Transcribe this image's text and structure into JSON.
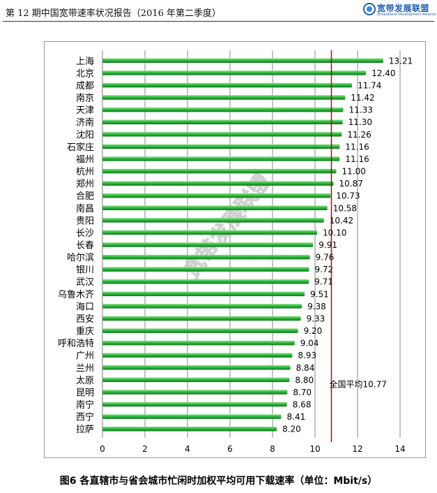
{
  "header": {
    "title": "第 12 期中国宽带速率状况报告（2016 年第二季度）",
    "logo_text": "宽带发展联盟",
    "logo_subtext": "Broadband Development Alliance"
  },
  "caption": "图6 各直辖市与省会城市忙闲时加权平均可用下载速率（单位：Mbit/s）",
  "chart_data": {
    "type": "bar",
    "orientation": "horizontal",
    "categories": [
      "上海",
      "北京",
      "成都",
      "南京",
      "天津",
      "济南",
      "沈阳",
      "石家庄",
      "福州",
      "杭州",
      "郑州",
      "合肥",
      "南昌",
      "贵阳",
      "长沙",
      "长春",
      "哈尔滨",
      "银川",
      "武汉",
      "乌鲁木齐",
      "海口",
      "西安",
      "重庆",
      "呼和浩特",
      "广州",
      "兰州",
      "太原",
      "昆明",
      "南宁",
      "西宁",
      "拉萨"
    ],
    "values": [
      13.21,
      12.4,
      11.74,
      11.42,
      11.33,
      11.3,
      11.26,
      11.16,
      11.16,
      11.0,
      10.87,
      10.73,
      10.58,
      10.42,
      10.1,
      9.91,
      9.76,
      9.72,
      9.71,
      9.51,
      9.38,
      9.33,
      9.2,
      9.04,
      8.93,
      8.84,
      8.8,
      8.7,
      8.68,
      8.41,
      8.2
    ],
    "value_labels": [
      "13.21",
      "12.40",
      "11.74",
      "11.42",
      "11.33",
      "11.30",
      "11.26",
      "11.16",
      "11.16",
      "11.00",
      "10.87",
      "10.73",
      "10.58",
      "10.42",
      "10.10",
      "9.91",
      "9.76",
      "9.72",
      "9.71",
      "9.51",
      "9.38",
      "9.33",
      "9.20",
      "9.04",
      "8.93",
      "8.84",
      "8.80",
      "8.70",
      "8.68",
      "8.41",
      "8.20"
    ],
    "xlim": [
      0,
      14
    ],
    "xticks": [
      "0",
      "2",
      "4",
      "6",
      "8",
      "10",
      "12",
      "14"
    ],
    "grid": true,
    "bar_color": "#1ea22f",
    "reference_line": {
      "value": 10.77,
      "label": "全国平均10.77",
      "color": "#c00000"
    },
    "watermark": "宽带发展联盟"
  }
}
